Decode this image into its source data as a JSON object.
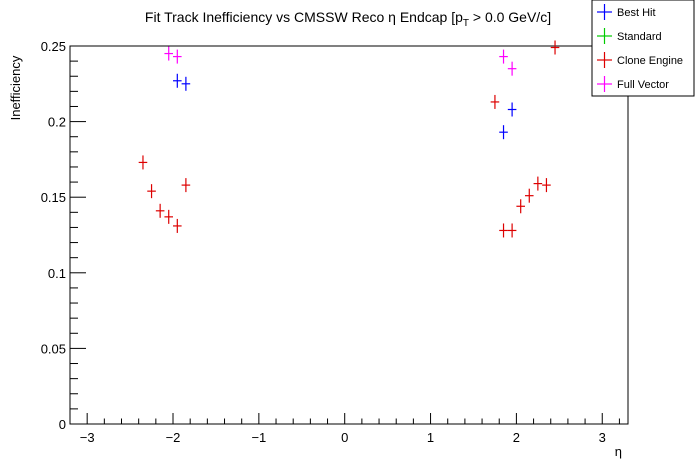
{
  "chart_data": {
    "type": "scatter",
    "title": "Fit Track Inefficiency vs CMSSW Reco η Endcap [p_T > 0.0 GeV/c]",
    "title_parts": {
      "prefix": "Fit Track Inefficiency vs CMSSW Reco η Endcap [p",
      "subscript": "T",
      "suffix": " > 0.0 GeV/c]"
    },
    "xlabel": "η",
    "ylabel": "Inefficiency",
    "xlim": [
      -3.2,
      3.3
    ],
    "ylim": [
      0,
      0.25
    ],
    "x_ticks": [
      -3,
      -2,
      -1,
      0,
      1,
      2,
      3
    ],
    "x_tick_labels": [
      "−3",
      "−2",
      "−1",
      "0",
      "1",
      "2",
      "3"
    ],
    "y_ticks": [
      0,
      0.05,
      0.1,
      0.15,
      0.2,
      0.25
    ],
    "y_tick_labels": [
      "0",
      "0.05",
      "0.1",
      "0.15",
      "0.2",
      "0.25"
    ],
    "grid": false,
    "legend_position": "top-right",
    "x_error": 0.05,
    "series": [
      {
        "name": "Best Hit",
        "color": "#0000ff",
        "points": [
          [
            -1.95,
            0.227
          ],
          [
            -1.85,
            0.225
          ],
          [
            1.85,
            0.193
          ],
          [
            1.95,
            0.208
          ]
        ]
      },
      {
        "name": "Standard",
        "color": "#00cc00",
        "points": []
      },
      {
        "name": "Clone Engine",
        "color": "#dd0000",
        "points": [
          [
            -2.35,
            0.173
          ],
          [
            -2.25,
            0.154
          ],
          [
            -2.15,
            0.141
          ],
          [
            -2.05,
            0.137
          ],
          [
            -1.95,
            0.131
          ],
          [
            -1.85,
            0.158
          ],
          [
            1.75,
            0.213
          ],
          [
            1.85,
            0.128
          ],
          [
            1.95,
            0.128
          ],
          [
            2.05,
            0.144
          ],
          [
            2.15,
            0.151
          ],
          [
            2.25,
            0.159
          ],
          [
            2.35,
            0.158
          ],
          [
            2.45,
            0.249
          ]
        ]
      },
      {
        "name": "Full Vector",
        "color": "#ff00ff",
        "points": [
          [
            -2.05,
            0.245
          ],
          [
            -1.95,
            0.243
          ],
          [
            1.85,
            0.243
          ],
          [
            1.95,
            0.235
          ]
        ]
      }
    ]
  }
}
